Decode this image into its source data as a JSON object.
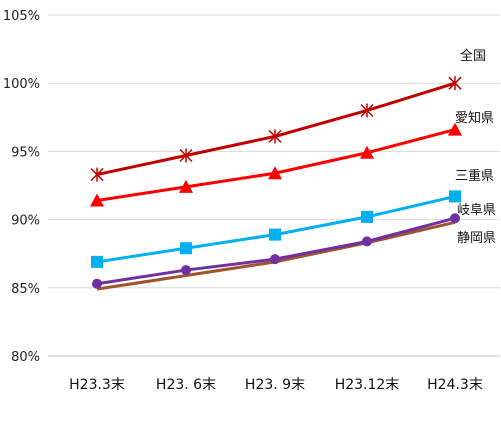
{
  "chart_data": {
    "type": "line",
    "title": "",
    "xlabel": "",
    "ylabel": "",
    "categories": [
      "H23.3末",
      "H23. 6末",
      "H23. 9末",
      "H23.12末",
      "H24.3末"
    ],
    "ylim": [
      80,
      105
    ],
    "yticks": [
      80,
      85,
      90,
      95,
      100,
      105
    ],
    "ytick_labels": [
      "80%",
      "85%",
      "90%",
      "95%",
      "100%",
      "105%"
    ],
    "grid": "horizontal",
    "legend": "direct labels at right end of each line",
    "series": [
      {
        "name": "全国",
        "values": [
          93.3,
          94.7,
          96.1,
          98.0,
          100.0
        ],
        "color": "#c00000",
        "marker": "asterisk"
      },
      {
        "name": "愛知県",
        "values": [
          91.4,
          92.4,
          93.4,
          94.9,
          96.6
        ],
        "color": "#ff0000",
        "marker": "triangle"
      },
      {
        "name": "三重県",
        "values": [
          86.9,
          87.9,
          88.9,
          90.2,
          91.7
        ],
        "color": "#00b0f0",
        "marker": "square"
      },
      {
        "name": "岐阜県",
        "values": [
          85.3,
          86.3,
          87.1,
          88.4,
          90.1
        ],
        "color": "#7030a0",
        "marker": "circle"
      },
      {
        "name": "静岡県",
        "values": [
          84.9,
          85.9,
          86.9,
          88.3,
          89.8
        ],
        "color": "#a0522d",
        "marker": "none"
      }
    ]
  }
}
